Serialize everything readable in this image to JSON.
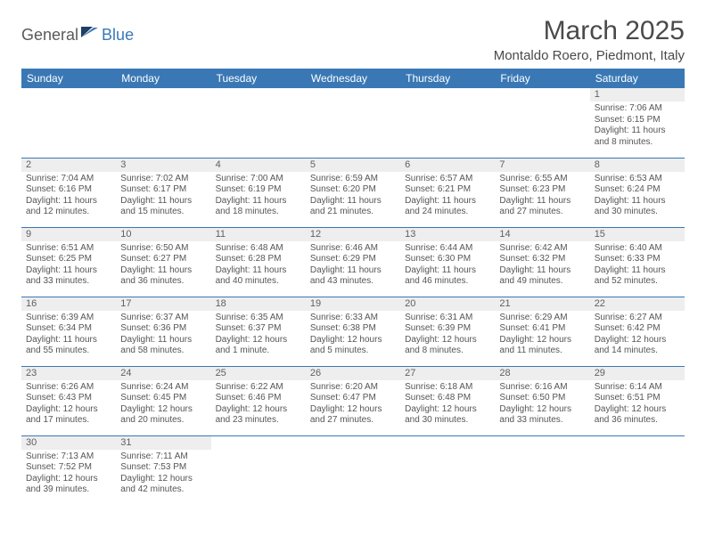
{
  "brand": {
    "name1": "General",
    "name2": "Blue"
  },
  "header": {
    "month": "March 2025",
    "location": "Montaldo Roero, Piedmont, Italy"
  },
  "style": {
    "header_bg": "#3a78b5",
    "header_fg": "#ffffff",
    "daynum_bg": "#eeeeee",
    "border_color": "#3a78b5",
    "text_color": "#4a4a4a"
  },
  "daynames": [
    "Sunday",
    "Monday",
    "Tuesday",
    "Wednesday",
    "Thursday",
    "Friday",
    "Saturday"
  ],
  "weeks": [
    [
      null,
      null,
      null,
      null,
      null,
      null,
      {
        "n": "1",
        "sunrise": "7:06 AM",
        "sunset": "6:15 PM",
        "daylight": "11 hours and 8 minutes."
      }
    ],
    [
      {
        "n": "2",
        "sunrise": "7:04 AM",
        "sunset": "6:16 PM",
        "daylight": "11 hours and 12 minutes."
      },
      {
        "n": "3",
        "sunrise": "7:02 AM",
        "sunset": "6:17 PM",
        "daylight": "11 hours and 15 minutes."
      },
      {
        "n": "4",
        "sunrise": "7:00 AM",
        "sunset": "6:19 PM",
        "daylight": "11 hours and 18 minutes."
      },
      {
        "n": "5",
        "sunrise": "6:59 AM",
        "sunset": "6:20 PM",
        "daylight": "11 hours and 21 minutes."
      },
      {
        "n": "6",
        "sunrise": "6:57 AM",
        "sunset": "6:21 PM",
        "daylight": "11 hours and 24 minutes."
      },
      {
        "n": "7",
        "sunrise": "6:55 AM",
        "sunset": "6:23 PM",
        "daylight": "11 hours and 27 minutes."
      },
      {
        "n": "8",
        "sunrise": "6:53 AM",
        "sunset": "6:24 PM",
        "daylight": "11 hours and 30 minutes."
      }
    ],
    [
      {
        "n": "9",
        "sunrise": "6:51 AM",
        "sunset": "6:25 PM",
        "daylight": "11 hours and 33 minutes."
      },
      {
        "n": "10",
        "sunrise": "6:50 AM",
        "sunset": "6:27 PM",
        "daylight": "11 hours and 36 minutes."
      },
      {
        "n": "11",
        "sunrise": "6:48 AM",
        "sunset": "6:28 PM",
        "daylight": "11 hours and 40 minutes."
      },
      {
        "n": "12",
        "sunrise": "6:46 AM",
        "sunset": "6:29 PM",
        "daylight": "11 hours and 43 minutes."
      },
      {
        "n": "13",
        "sunrise": "6:44 AM",
        "sunset": "6:30 PM",
        "daylight": "11 hours and 46 minutes."
      },
      {
        "n": "14",
        "sunrise": "6:42 AM",
        "sunset": "6:32 PM",
        "daylight": "11 hours and 49 minutes."
      },
      {
        "n": "15",
        "sunrise": "6:40 AM",
        "sunset": "6:33 PM",
        "daylight": "11 hours and 52 minutes."
      }
    ],
    [
      {
        "n": "16",
        "sunrise": "6:39 AM",
        "sunset": "6:34 PM",
        "daylight": "11 hours and 55 minutes."
      },
      {
        "n": "17",
        "sunrise": "6:37 AM",
        "sunset": "6:36 PM",
        "daylight": "11 hours and 58 minutes."
      },
      {
        "n": "18",
        "sunrise": "6:35 AM",
        "sunset": "6:37 PM",
        "daylight": "12 hours and 1 minute."
      },
      {
        "n": "19",
        "sunrise": "6:33 AM",
        "sunset": "6:38 PM",
        "daylight": "12 hours and 5 minutes."
      },
      {
        "n": "20",
        "sunrise": "6:31 AM",
        "sunset": "6:39 PM",
        "daylight": "12 hours and 8 minutes."
      },
      {
        "n": "21",
        "sunrise": "6:29 AM",
        "sunset": "6:41 PM",
        "daylight": "12 hours and 11 minutes."
      },
      {
        "n": "22",
        "sunrise": "6:27 AM",
        "sunset": "6:42 PM",
        "daylight": "12 hours and 14 minutes."
      }
    ],
    [
      {
        "n": "23",
        "sunrise": "6:26 AM",
        "sunset": "6:43 PM",
        "daylight": "12 hours and 17 minutes."
      },
      {
        "n": "24",
        "sunrise": "6:24 AM",
        "sunset": "6:45 PM",
        "daylight": "12 hours and 20 minutes."
      },
      {
        "n": "25",
        "sunrise": "6:22 AM",
        "sunset": "6:46 PM",
        "daylight": "12 hours and 23 minutes."
      },
      {
        "n": "26",
        "sunrise": "6:20 AM",
        "sunset": "6:47 PM",
        "daylight": "12 hours and 27 minutes."
      },
      {
        "n": "27",
        "sunrise": "6:18 AM",
        "sunset": "6:48 PM",
        "daylight": "12 hours and 30 minutes."
      },
      {
        "n": "28",
        "sunrise": "6:16 AM",
        "sunset": "6:50 PM",
        "daylight": "12 hours and 33 minutes."
      },
      {
        "n": "29",
        "sunrise": "6:14 AM",
        "sunset": "6:51 PM",
        "daylight": "12 hours and 36 minutes."
      }
    ],
    [
      {
        "n": "30",
        "sunrise": "7:13 AM",
        "sunset": "7:52 PM",
        "daylight": "12 hours and 39 minutes."
      },
      {
        "n": "31",
        "sunrise": "7:11 AM",
        "sunset": "7:53 PM",
        "daylight": "12 hours and 42 minutes."
      },
      null,
      null,
      null,
      null,
      null
    ]
  ],
  "labels": {
    "sunrise": "Sunrise: ",
    "sunset": "Sunset: ",
    "daylight": "Daylight: "
  }
}
